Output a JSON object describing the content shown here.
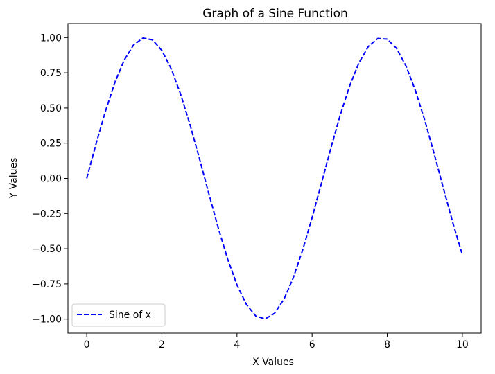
{
  "chart_data": {
    "type": "line",
    "title": "Graph of a Sine Function",
    "xlabel": "X Values",
    "ylabel": "Y Values",
    "xlim": [
      -0.5,
      10.5
    ],
    "ylim": [
      -1.1,
      1.1
    ],
    "x_ticks": [
      0,
      2,
      4,
      6,
      8,
      10
    ],
    "x_tick_labels": [
      "0",
      "2",
      "4",
      "6",
      "8",
      "10"
    ],
    "y_ticks": [
      -1.0,
      -0.75,
      -0.5,
      -0.25,
      0.0,
      0.25,
      0.5,
      0.75,
      1.0
    ],
    "y_tick_labels": [
      "−1.00",
      "−0.75",
      "−0.50",
      "−0.25",
      "0.00",
      "0.25",
      "0.50",
      "0.75",
      "1.00"
    ],
    "grid": false,
    "legend_position": "lower-left",
    "series": [
      {
        "name": "Sine of x",
        "color": "#0000ff",
        "line_style": "dashed",
        "x": [
          0.0,
          0.25,
          0.5,
          0.75,
          1.0,
          1.25,
          1.5,
          1.75,
          2.0,
          2.25,
          2.5,
          2.75,
          3.0,
          3.25,
          3.5,
          3.75,
          4.0,
          4.25,
          4.5,
          4.75,
          5.0,
          5.25,
          5.5,
          5.75,
          6.0,
          6.25,
          6.5,
          6.75,
          7.0,
          7.25,
          7.5,
          7.75,
          8.0,
          8.25,
          8.5,
          8.75,
          9.0,
          9.25,
          9.5,
          9.75,
          10.0
        ],
        "y": [
          0.0,
          0.247,
          0.479,
          0.682,
          0.841,
          0.949,
          0.997,
          0.984,
          0.909,
          0.778,
          0.598,
          0.382,
          0.141,
          -0.108,
          -0.351,
          -0.572,
          -0.757,
          -0.895,
          -0.978,
          -0.999,
          -0.959,
          -0.859,
          -0.706,
          -0.508,
          -0.279,
          -0.033,
          0.215,
          0.451,
          0.657,
          0.823,
          0.938,
          0.994,
          0.989,
          0.923,
          0.798,
          0.624,
          0.412,
          0.174,
          -0.075,
          -0.319,
          -0.544
        ]
      }
    ]
  }
}
